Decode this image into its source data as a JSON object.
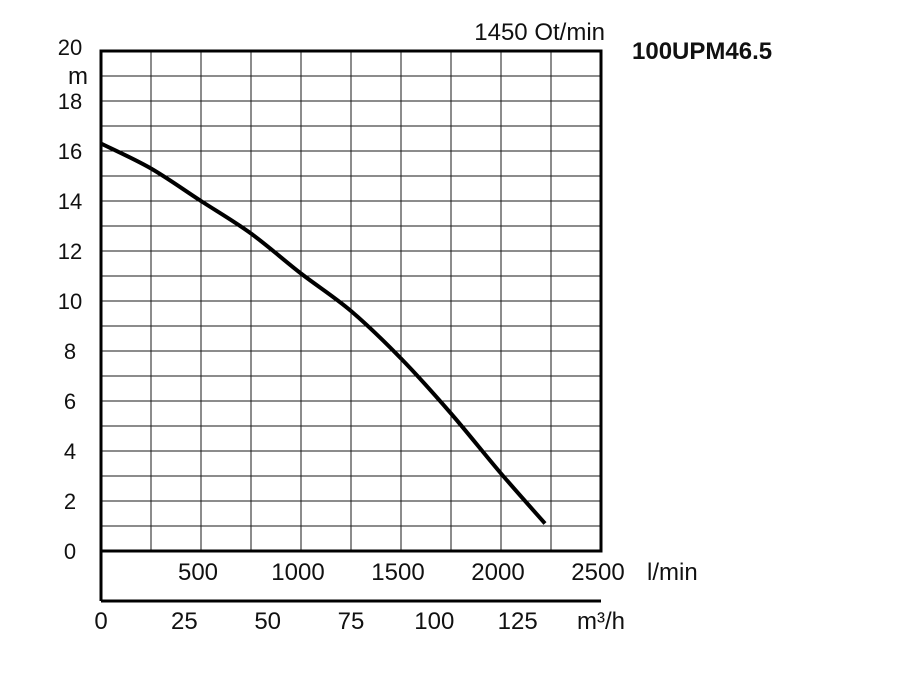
{
  "chart_data": {
    "type": "line",
    "title": "100UPM46.5",
    "subtitle": "1450 Ot/min",
    "ylabel": "m",
    "ylim": [
      0,
      20
    ],
    "y_ticks": [
      "0",
      "2",
      "4",
      "6",
      "8",
      "10",
      "12",
      "14",
      "16",
      "18",
      "20"
    ],
    "x_primary": {
      "unit": "l/min",
      "xlim": [
        0,
        2500
      ],
      "ticks": [
        "500",
        "1000",
        "1500",
        "2000",
        "2500"
      ]
    },
    "x_secondary": {
      "unit": "m³/h",
      "ticks": [
        "0",
        "25",
        "50",
        "75",
        "100",
        "125"
      ],
      "tick_values": [
        0,
        25,
        50,
        75,
        100,
        125
      ]
    },
    "grid": true,
    "series": [
      {
        "x": [
          0,
          250,
          500,
          750,
          1000,
          1250,
          1500,
          1750,
          2000,
          2220
        ],
        "values": [
          16.3,
          15.3,
          14.0,
          12.7,
          11.1,
          9.6,
          7.7,
          5.5,
          3.1,
          1.1
        ]
      }
    ]
  }
}
